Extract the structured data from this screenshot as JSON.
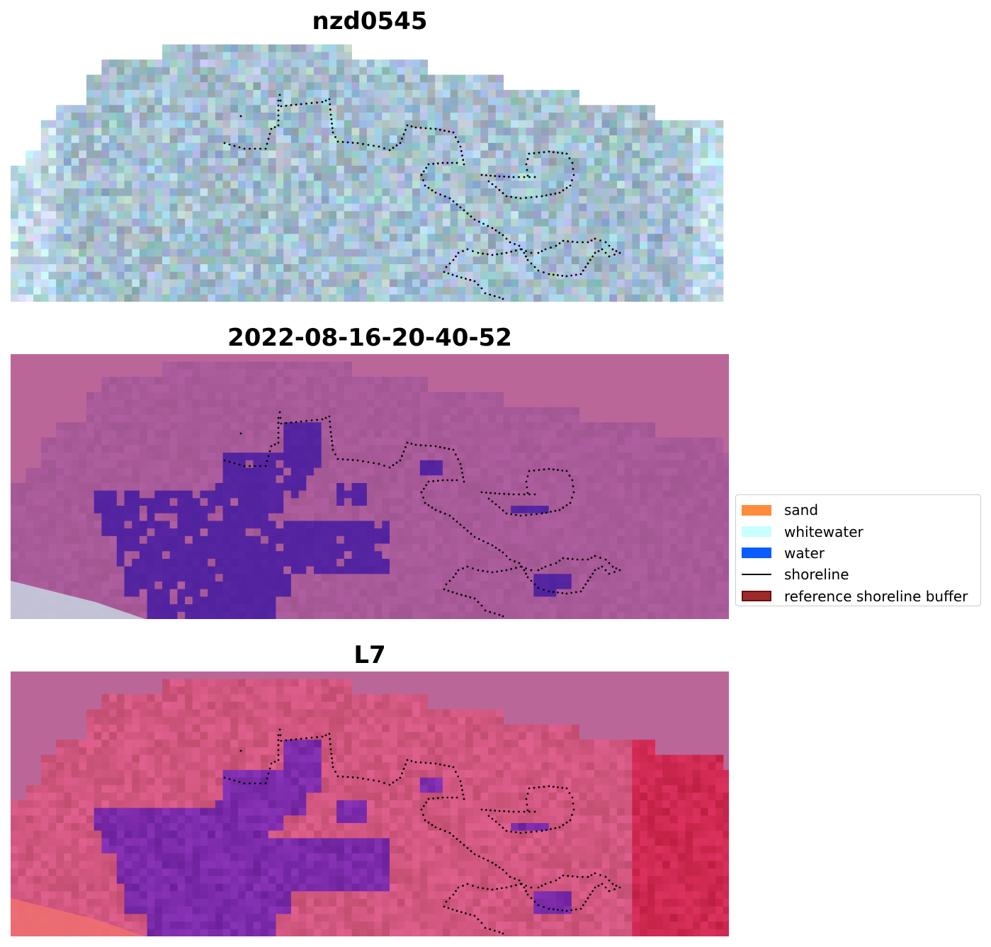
{
  "panels": [
    {
      "id": "rgb",
      "title": "nzd0545",
      "style": "rgb"
    },
    {
      "id": "classified",
      "title": "2022-08-16-20-40-52",
      "style": "classified"
    },
    {
      "id": "index",
      "title": "L7",
      "style": "index"
    }
  ],
  "legend": {
    "items": [
      {
        "label": "sand",
        "kind": "patch",
        "color": "#ff8c3a"
      },
      {
        "label": "whitewater",
        "kind": "patch",
        "color": "#c8ffff"
      },
      {
        "label": "water",
        "kind": "patch",
        "color": "#0a5cff"
      },
      {
        "label": "shoreline",
        "kind": "line",
        "color": "#000000"
      },
      {
        "label": "reference shoreline buffer",
        "kind": "patch",
        "color": "#9e2a2b",
        "edge": "#6b1010"
      }
    ]
  },
  "colors": {
    "rgb_base": "#a5bdd0",
    "classified_base": "#a85a98",
    "classified_water": "#5424a0",
    "index_base": "#d0567e",
    "index_water": "#7a2aa8",
    "mask": "#bb6699",
    "shoreline": "#000000"
  }
}
